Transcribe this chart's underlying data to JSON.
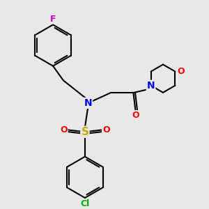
{
  "bg_color": "#e8e8e8",
  "bond_color": "#000000",
  "bond_width": 1.5,
  "atom_colors": {
    "F": "#cc00cc",
    "N": "#0000ff",
    "S": "#ccaa00",
    "O": "#ff0000",
    "Cl": "#00aa00",
    "C": "#000000"
  },
  "font_size": 9,
  "fig_size": [
    3.0,
    3.0
  ],
  "dpi": 100,
  "xlim": [
    0,
    10
  ],
  "ylim": [
    0,
    10
  ]
}
